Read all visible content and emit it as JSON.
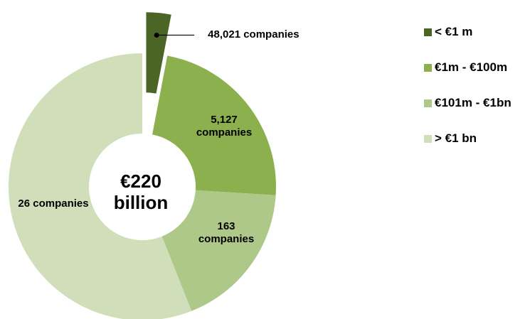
{
  "chart_data": {
    "type": "donut",
    "center_label": "€220 billion",
    "categories": [
      "< €1 m",
      "€1m - €100m",
      "€101m - €1bn",
      "> €1 bn"
    ],
    "values": [
      3,
      23,
      18,
      56
    ],
    "colors": [
      "#4b6527",
      "#8db04f",
      "#adc889",
      "#d0dfba"
    ],
    "slice_labels": [
      "48,021 companies",
      "5,127 companies",
      "163 companies",
      "26 companies"
    ],
    "exploded": [
      true,
      false,
      false,
      false
    ],
    "legend": "right"
  }
}
